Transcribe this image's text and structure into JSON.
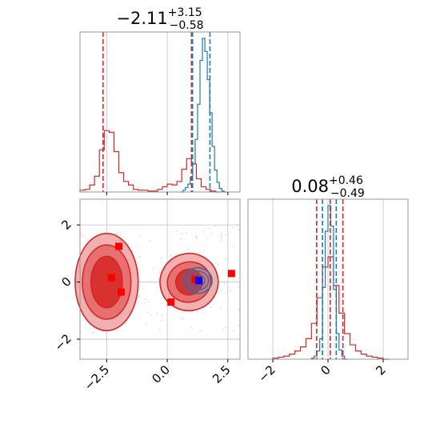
{
  "chart_data": [
    {
      "type": "histogram",
      "panel": "top-left",
      "title": {
        "main": "−2.11",
        "sup": "+3.15",
        "sub": "−0.58"
      },
      "xlim": [
        -3.6,
        3.0
      ],
      "grid": true,
      "series": [
        {
          "color": "#d62728",
          "x": [
            -3.5,
            -3.3,
            -3.1,
            -2.9,
            -2.7,
            -2.5,
            -2.3,
            -2.1,
            -1.9,
            -1.7,
            -1.5,
            -1.3,
            -1.1,
            -0.9,
            -0.7,
            -0.5,
            -0.3,
            -0.1,
            0.1,
            0.3,
            0.5,
            0.7,
            0.9,
            1.1,
            1.3,
            1.5,
            1.7,
            1.9,
            2.1
          ],
          "counts": [
            2,
            3,
            8,
            18,
            48,
            70,
            68,
            46,
            22,
            12,
            8,
            3,
            2,
            2,
            1,
            1,
            3,
            6,
            9,
            8,
            12,
            26,
            38,
            32,
            15,
            6,
            3,
            1,
            0
          ]
        },
        {
          "color": "#1f77b4",
          "x": [
            0.6,
            0.7,
            0.8,
            0.9,
            1.0,
            1.1,
            1.2,
            1.3,
            1.4,
            1.5,
            1.6,
            1.7,
            1.8,
            1.9,
            2.0,
            2.1,
            2.2,
            2.3,
            2.4
          ],
          "counts": [
            0,
            2,
            5,
            9,
            17,
            32,
            60,
            100,
            150,
            175,
            160,
            128,
            90,
            52,
            25,
            11,
            4,
            1,
            0
          ]
        }
      ],
      "quantile_lines": [
        {
          "color": "#d62728",
          "x": [
            -2.65,
            1.0,
            1.04
          ]
        },
        {
          "color": "#1f77b4",
          "x": [
            1.04,
            1.76
          ]
        }
      ]
    },
    {
      "type": "histogram",
      "panel": "bottom-right",
      "title": {
        "main": "0.08",
        "sup": "+0.46",
        "sub": "−0.49"
      },
      "xlim": [
        -2.9,
        2.9
      ],
      "xticks": [
        -2,
        0,
        2
      ],
      "xtick_labels": [
        "−2",
        "0",
        "2"
      ],
      "grid": true,
      "series": [
        {
          "color": "#d62728",
          "x": [
            -1.9,
            -1.7,
            -1.5,
            -1.3,
            -1.1,
            -0.9,
            -0.7,
            -0.5,
            -0.3,
            -0.1,
            0.1,
            0.3,
            0.5,
            0.7,
            0.9,
            1.1,
            1.3,
            1.5,
            1.7,
            1.9,
            2.1
          ],
          "counts": [
            1,
            2,
            3,
            5,
            8,
            12,
            20,
            35,
            60,
            90,
            100,
            72,
            45,
            25,
            14,
            8,
            5,
            3,
            2,
            1,
            0
          ]
        },
        {
          "color": "#1f77b4",
          "x": [
            -0.55,
            -0.45,
            -0.35,
            -0.25,
            -0.15,
            -0.05,
            0.05,
            0.15,
            0.25,
            0.35,
            0.45,
            0.55,
            0.65
          ],
          "counts": [
            1,
            3,
            8,
            20,
            70,
            125,
            150,
            130,
            68,
            25,
            9,
            3,
            0
          ]
        }
      ],
      "quantile_lines": [
        {
          "color": "#d62728",
          "x": [
            -0.41,
            0.08,
            0.54
          ]
        },
        {
          "color": "#1f77b4",
          "x": [
            -0.2,
            0.3
          ]
        }
      ]
    },
    {
      "type": "contour_scatter",
      "panel": "bottom-left",
      "xlim": [
        -3.6,
        3.0
      ],
      "ylim": [
        -2.7,
        2.9
      ],
      "xticks": [
        -2.5,
        0.0,
        2.5
      ],
      "xtick_labels": [
        "−2.5",
        "0.0",
        "2.5"
      ],
      "yticks": [
        -2,
        0,
        2
      ],
      "ytick_labels": [
        "−2",
        "0",
        "2"
      ],
      "grid": true,
      "red_regions": [
        {
          "center": [
            -2.5,
            0.0
          ],
          "level_radii": [
            [
              1.3,
              1.7
            ],
            [
              1.0,
              1.3
            ],
            [
              0.65,
              0.9
            ]
          ]
        },
        {
          "center": [
            0.9,
            0.0
          ],
          "level_radii": [
            [
              1.2,
              1.0
            ],
            [
              0.9,
              0.7
            ],
            [
              0.55,
              0.45
            ]
          ],
          "angle": -15
        }
      ],
      "blue_region": {
        "center": [
          1.25,
          0.05
        ],
        "level_radii": [
          [
            0.6,
            0.45
          ],
          [
            0.45,
            0.33
          ],
          [
            0.3,
            0.22
          ]
        ]
      },
      "red_markers": [
        [
          -2.0,
          1.25
        ],
        [
          -2.3,
          0.15
        ],
        [
          -1.9,
          -0.35
        ],
        [
          0.15,
          -0.7
        ],
        [
          2.65,
          0.3
        ],
        [
          1.15,
          0.1
        ]
      ],
      "blue_marker": [
        1.3,
        0.05
      ]
    }
  ]
}
